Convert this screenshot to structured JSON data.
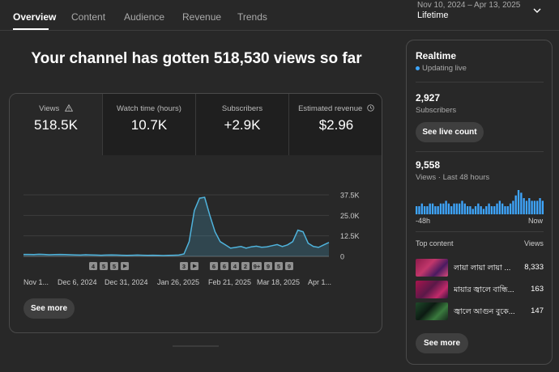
{
  "tabs": [
    {
      "label": "Overview",
      "active": true
    },
    {
      "label": "Content"
    },
    {
      "label": "Audience"
    },
    {
      "label": "Revenue"
    },
    {
      "label": "Trends"
    }
  ],
  "date_range": "Nov 10, 2024 – Apr 13, 2025",
  "date_period": "Lifetime",
  "headline": "Your channel has gotten 518,530 views so far",
  "metrics": [
    {
      "label": "Views",
      "value": "518.5K",
      "icon": "warning-icon"
    },
    {
      "label": "Watch time (hours)",
      "value": "10.7K"
    },
    {
      "label": "Subscribers",
      "value": "+2.9K"
    },
    {
      "label": "Estimated revenue",
      "value": "$2.96",
      "icon": "clock-icon"
    }
  ],
  "chart_data": {
    "type": "area",
    "series": [
      {
        "values": [
          1200,
          1200,
          1100,
          1300,
          1200,
          1000,
          1100,
          1200,
          1100,
          1000,
          900,
          800,
          1000,
          900,
          800,
          700,
          800,
          900,
          800,
          700,
          600,
          700,
          800,
          700,
          600,
          700,
          600,
          500,
          600,
          700,
          800,
          1500,
          9000,
          28000,
          35500,
          36000,
          25000,
          15000,
          9000,
          7000,
          5000,
          5500,
          6000,
          5000,
          5800,
          6200,
          5600,
          5800,
          6500,
          7200,
          6000,
          7000,
          9000,
          16000,
          15000,
          8000,
          6000,
          5500,
          7000,
          8500
        ],
        "color": "#4fb3dc"
      }
    ],
    "x_tick_labels": [
      "Nov 1...",
      "Dec 6, 2024",
      "Dec 31, 2024",
      "Jan 26, 2025",
      "Feb 21, 2025",
      "Mar 18, 2025",
      "Apr 1..."
    ],
    "y_tick_labels": [
      "37.5K",
      "25.0K",
      "12.5K",
      "0"
    ],
    "ylim": [
      0,
      37500
    ],
    "markers_group1": [
      "4",
      "5",
      "5"
    ],
    "markers_group2": [
      "3"
    ],
    "markers_group3": [
      "6",
      "6",
      "4",
      "2",
      "9+",
      "9",
      "5",
      "9"
    ]
  },
  "chart_see_more": "See more",
  "realtime": {
    "title": "Realtime",
    "status": "Updating live",
    "subscribers_value": "2,927",
    "subscribers_label": "Subscribers",
    "live_count_button": "See live count",
    "views_value": "9,558",
    "views_label": "Views · Last 48 hours",
    "bars": [
      3,
      3,
      4,
      3,
      3,
      4,
      4,
      3,
      3,
      4,
      4,
      5,
      4,
      3,
      4,
      4,
      4,
      5,
      4,
      3,
      3,
      2,
      3,
      4,
      3,
      2,
      3,
      4,
      3,
      3,
      4,
      5,
      4,
      3,
      3,
      4,
      5,
      7,
      9,
      8,
      6,
      5,
      6,
      5,
      5,
      5,
      6,
      5
    ],
    "start_label": "-48h",
    "end_label": "Now",
    "top_content_label": "Top content",
    "views_col_label": "Views",
    "top_content": [
      {
        "title": "লায়া লায়া লায়া ...",
        "views": "8,333"
      },
      {
        "title": "মায়ার জ্বালে বান্ধি...",
        "views": "163"
      },
      {
        "title": "জ্বালে আগুন বুকে...",
        "views": "147"
      }
    ],
    "see_more": "See more"
  }
}
